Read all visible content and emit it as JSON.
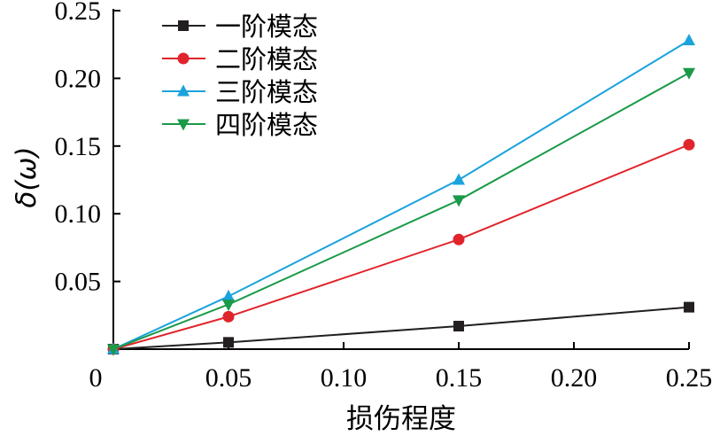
{
  "chart_data": {
    "type": "line",
    "xlabel": "损伤程度",
    "ylabel": "δ(ω)",
    "x": [
      0,
      0.05,
      0.15,
      0.25
    ],
    "xlim": [
      0,
      0.25
    ],
    "ylim": [
      0,
      0.25
    ],
    "x_ticks": [
      "0",
      "0.05",
      "0.10",
      "0.15",
      "0.20",
      "0.25"
    ],
    "x_tick_values": [
      0,
      0.05,
      0.1,
      0.15,
      0.2,
      0.25
    ],
    "y_ticks": [
      "0.05",
      "0.10",
      "0.15",
      "0.20",
      "0.25"
    ],
    "y_tick_values": [
      0.05,
      0.1,
      0.15,
      0.2,
      0.25
    ],
    "grid": false,
    "legend_position": "top-left",
    "series": [
      {
        "name": "一阶模态",
        "values": [
          0,
          0.005,
          0.017,
          0.031
        ],
        "color": "#231f20",
        "marker": "square"
      },
      {
        "name": "二阶模态",
        "values": [
          0,
          0.024,
          0.081,
          0.151
        ],
        "color": "#e0242b",
        "marker": "circle"
      },
      {
        "name": "三阶模态",
        "values": [
          0,
          0.039,
          0.125,
          0.228
        ],
        "color": "#1aa3dc",
        "marker": "triangle-up"
      },
      {
        "name": "四阶模态",
        "values": [
          0,
          0.033,
          0.11,
          0.204
        ],
        "color": "#1a9a48",
        "marker": "triangle-down"
      }
    ]
  }
}
